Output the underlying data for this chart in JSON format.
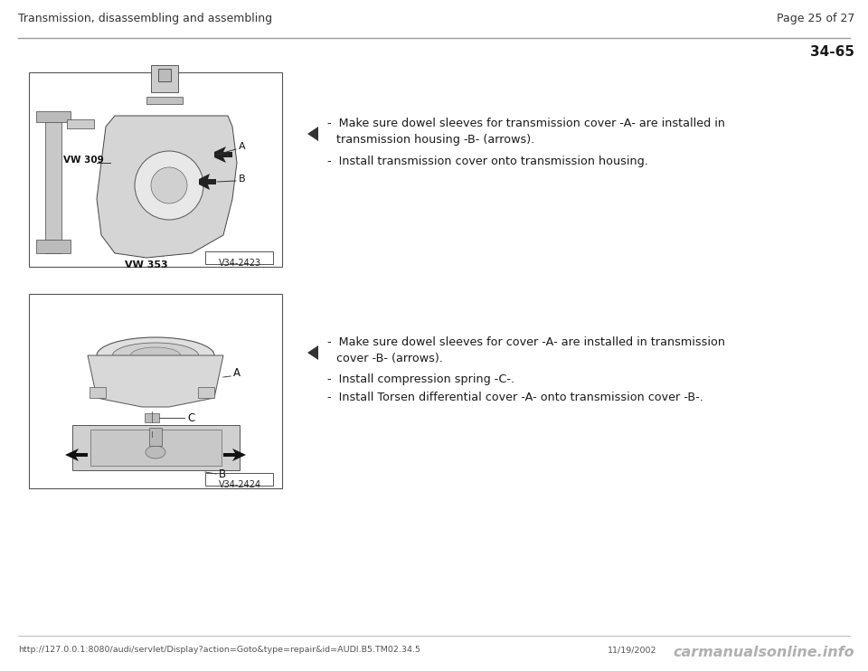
{
  "header_left": "Transmission, disassembling and assembling",
  "header_right": "Page 25 of 27",
  "section_id": "34-65",
  "footer_url": "http://127.0.0.1:8080/audi/servlet/Display?action=Goto&type=repair&id=AUDI.B5.TM02.34.5",
  "footer_date": "11/19/2002",
  "footer_watermark": "carmanualsonline.info",
  "bg_color": "#ffffff",
  "header_line_color": "#999999",
  "text_color": "#1a1a1a",
  "gray_line": "#bbbbbb",
  "block1": {
    "bullet1_line1": "Make sure dowel sleeves for transmission cover -A- are installed in",
    "bullet1_line2": "transmission housing -B- (arrows).",
    "bullet2": "Install transmission cover onto transmission housing.",
    "image_label": "V34-2423"
  },
  "block2": {
    "bullet1_line1": "Make sure dowel sleeves for cover -A- are installed in transmission",
    "bullet1_line2": "cover -B- (arrows).",
    "bullet2": "Install compression spring -C-.",
    "bullet3": "Install Torsen differential cover -A- onto transmission cover -B-.",
    "image_label": "V34-2424"
  }
}
